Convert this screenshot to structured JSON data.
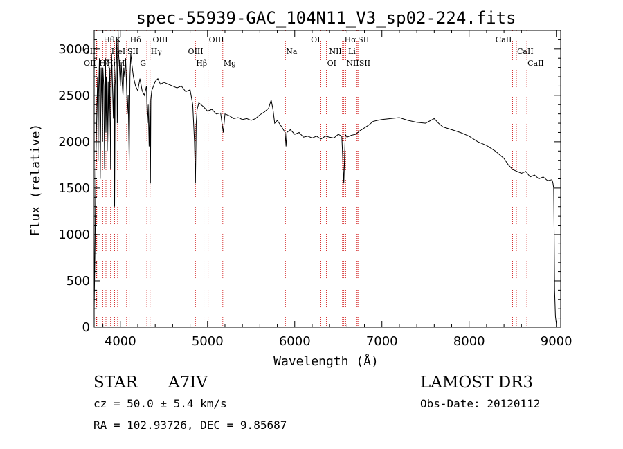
{
  "chart_data": {
    "type": "line",
    "title": "spec-55939-GAC_104N11_V3_sp02-224.fits",
    "xlabel": "Wavelength (Å)",
    "ylabel": "Flux (relative)",
    "xlim": [
      3700,
      9050
    ],
    "ylim": [
      0,
      3200
    ],
    "xticks": [
      4000,
      5000,
      6000,
      7000,
      8000,
      9000
    ],
    "yticks": [
      0,
      500,
      1000,
      1500,
      2000,
      2500,
      3000
    ],
    "series": [
      {
        "name": "spectrum",
        "x": [
          3700,
          3710,
          3720,
          3730,
          3740,
          3745,
          3750,
          3760,
          3770,
          3780,
          3790,
          3797,
          3800,
          3810,
          3820,
          3830,
          3835,
          3840,
          3850,
          3860,
          3870,
          3880,
          3889,
          3895,
          3900,
          3910,
          3920,
          3930,
          3934,
          3940,
          3950,
          3960,
          3965,
          3970,
          3975,
          3980,
          3990,
          4000,
          4010,
          4020,
          4030,
          4040,
          4050,
          4060,
          4070,
          4080,
          4090,
          4102,
          4110,
          4120,
          4130,
          4150,
          4175,
          4200,
          4225,
          4250,
          4275,
          4300,
          4310,
          4320,
          4330,
          4340,
          4345,
          4350,
          4360,
          4380,
          4400,
          4430,
          4460,
          4500,
          4550,
          4600,
          4650,
          4700,
          4750,
          4800,
          4830,
          4850,
          4861,
          4870,
          4880,
          4900,
          4950,
          5000,
          5050,
          5100,
          5150,
          5180,
          5200,
          5250,
          5300,
          5350,
          5400,
          5450,
          5500,
          5550,
          5600,
          5650,
          5700,
          5730,
          5750,
          5770,
          5800,
          5850,
          5890,
          5900,
          5910,
          5950,
          6000,
          6050,
          6100,
          6150,
          6200,
          6250,
          6300,
          6350,
          6400,
          6450,
          6500,
          6540,
          6563,
          6580,
          6600,
          6650,
          6700,
          6750,
          6800,
          6850,
          6900,
          6950,
          7000,
          7100,
          7200,
          7300,
          7400,
          7500,
          7600,
          7650,
          7700,
          7800,
          7900,
          8000,
          8100,
          8200,
          8300,
          8400,
          8450,
          8500,
          8550,
          8600,
          8650,
          8700,
          8750,
          8800,
          8850,
          8900,
          8950,
          8960,
          8970,
          8975,
          8980,
          8990,
          9000
        ],
        "values": [
          200,
          900,
          1800,
          2300,
          2700,
          1800,
          2500,
          2900,
          1600,
          2800,
          2400,
          2000,
          2800,
          2600,
          1700,
          2900,
          2100,
          2700,
          1900,
          2650,
          2000,
          2800,
          1700,
          2500,
          2950,
          2600,
          2250,
          2900,
          1300,
          2600,
          2800,
          3100,
          2200,
          2700,
          3200,
          2950,
          2800,
          2600,
          2850,
          2650,
          2500,
          2800,
          2700,
          2900,
          2650,
          2300,
          2500,
          1800,
          2700,
          2950,
          2850,
          2700,
          2600,
          2550,
          2680,
          2550,
          2500,
          2600,
          2200,
          2400,
          1950,
          2500,
          1550,
          2450,
          2550,
          2600,
          2650,
          2680,
          2620,
          2640,
          2620,
          2600,
          2580,
          2600,
          2540,
          2560,
          2400,
          2000,
          1550,
          2200,
          2350,
          2420,
          2380,
          2330,
          2350,
          2300,
          2310,
          2100,
          2300,
          2280,
          2250,
          2260,
          2240,
          2250,
          2230,
          2250,
          2290,
          2320,
          2360,
          2450,
          2350,
          2200,
          2230,
          2160,
          2100,
          1950,
          2100,
          2130,
          2080,
          2100,
          2050,
          2060,
          2040,
          2060,
          2030,
          2060,
          2050,
          2040,
          2080,
          2060,
          1550,
          2080,
          2050,
          2070,
          2080,
          2120,
          2150,
          2180,
          2220,
          2230,
          2240,
          2250,
          2260,
          2230,
          2210,
          2200,
          2250,
          2200,
          2160,
          2130,
          2100,
          2060,
          2000,
          1960,
          1900,
          1820,
          1750,
          1700,
          1680,
          1660,
          1680,
          1620,
          1640,
          1600,
          1620,
          1580,
          1590,
          1560,
          1500,
          1000,
          400,
          120,
          40
        ]
      }
    ],
    "lines": [
      {
        "label": "OII",
        "x": 3727,
        "row": 2,
        "side": "right"
      },
      {
        "label": "OII",
        "x": 3730,
        "row": 3,
        "side": "right"
      },
      {
        "label": "Hθ",
        "x": 3798,
        "row": 1,
        "side": "left"
      },
      {
        "label": "Hη",
        "x": 3835,
        "row": 3,
        "side": "left"
      },
      {
        "label": "Hζ",
        "x": 3889,
        "row": 3,
        "side": "right"
      },
      {
        "label": "HeI",
        "x": 3889,
        "row": 2,
        "side": "left"
      },
      {
        "label": "K",
        "x": 3934,
        "row": 1,
        "side": "left"
      },
      {
        "label": "H",
        "x": 3969,
        "row": 3,
        "side": "left"
      },
      {
        "label": "SII",
        "x": 4072,
        "row": 2,
        "side": "left"
      },
      {
        "label": "Hδ",
        "x": 4102,
        "row": 1,
        "side": "left"
      },
      {
        "label": "OIII",
        "x": 4363,
        "row": 1,
        "side": "left"
      },
      {
        "label": "Hγ",
        "x": 4341,
        "row": 2,
        "side": "left"
      },
      {
        "label": "G",
        "x": 4304,
        "row": 3,
        "side": "right"
      },
      {
        "label": "Hβ",
        "x": 4861,
        "row": 3,
        "side": "left"
      },
      {
        "label": "OIII",
        "x": 5007,
        "row": 1,
        "side": "left"
      },
      {
        "label": "OIII",
        "x": 4959,
        "row": 2,
        "side": "right"
      },
      {
        "label": "Mg",
        "x": 5175,
        "row": 3,
        "side": "left"
      },
      {
        "label": "Na",
        "x": 5893,
        "row": 2,
        "side": "left"
      },
      {
        "label": "OI",
        "x": 6300,
        "row": 1,
        "side": "right"
      },
      {
        "label": "OI",
        "x": 6364,
        "row": 3,
        "side": "left"
      },
      {
        "label": "Hα",
        "x": 6563,
        "row": 1,
        "side": "left"
      },
      {
        "label": "NII",
        "x": 6548,
        "row": 2,
        "side": "right"
      },
      {
        "label": "NII",
        "x": 6584,
        "row": 3,
        "side": "left"
      },
      {
        "label": "SII",
        "x": 6717,
        "row": 1,
        "side": "left"
      },
      {
        "label": "Li",
        "x": 6708,
        "row": 2,
        "side": "right"
      },
      {
        "label": "SII",
        "x": 6731,
        "row": 3,
        "side": "left"
      },
      {
        "label": "CaII",
        "x": 8498,
        "row": 1,
        "side": "right"
      },
      {
        "label": "CaII",
        "x": 8542,
        "row": 2,
        "side": "left"
      },
      {
        "label": "CaII",
        "x": 8662,
        "row": 3,
        "side": "left"
      }
    ],
    "colors": {
      "spectrum": "#000000",
      "lines": "#cc0000",
      "axes": "#000000"
    }
  },
  "info": {
    "object_class": "STAR",
    "subclass": "A7IV",
    "survey": "LAMOST DR3",
    "cz": "cz = 50.0 ± 5.4 km/s",
    "obs_date": "Obs-Date: 20120112",
    "coords": "RA = 102.93726, DEC =    9.85687"
  }
}
